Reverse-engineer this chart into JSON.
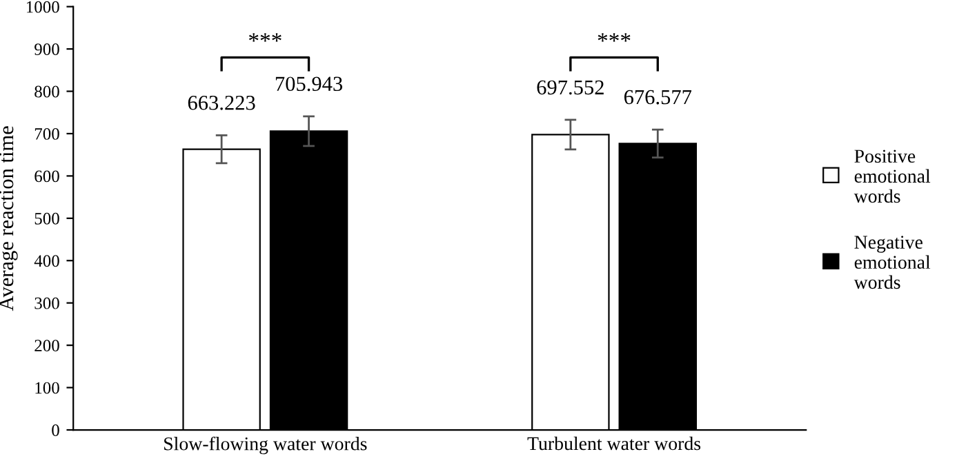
{
  "chart_data": {
    "type": "bar",
    "ylabel": "Average reaction time",
    "categories": [
      "Slow-flowing water words",
      "Turbulent water words"
    ],
    "series": [
      {
        "name": "Positive emotional words",
        "color": "#ffffff",
        "values": [
          663.223,
          697.552
        ],
        "errors": [
          33,
          35
        ]
      },
      {
        "name": "Negative emotional words",
        "color": "#000000",
        "values": [
          705.943,
          676.577
        ],
        "errors": [
          35,
          33
        ]
      }
    ],
    "data_labels": true,
    "ylim": [
      0,
      1000
    ],
    "yticks": [
      0,
      100,
      200,
      300,
      400,
      500,
      600,
      700,
      800,
      900,
      1000
    ],
    "annotations": [
      "***",
      "***"
    ],
    "legend": "right",
    "grid": false
  }
}
